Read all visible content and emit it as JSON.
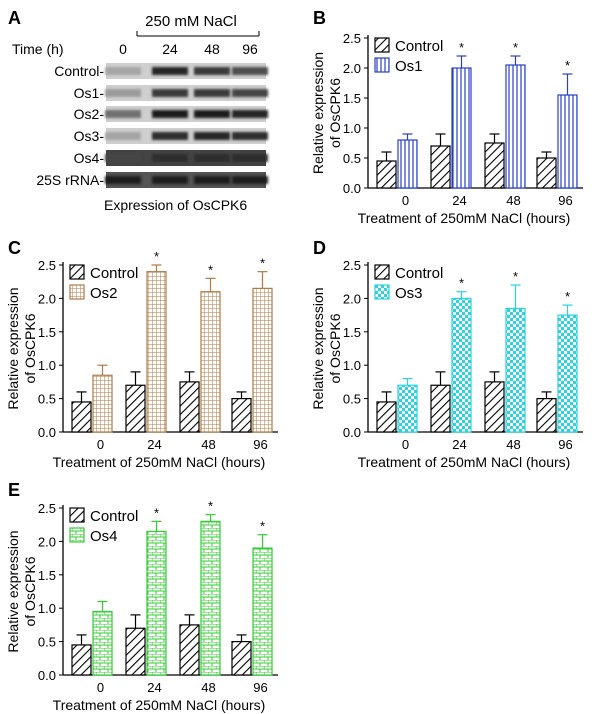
{
  "panel_labels": [
    "A",
    "B",
    "C",
    "D",
    "E"
  ],
  "blot": {
    "treatment": "250 mM NaCl",
    "time_label": "Time (h)",
    "times": [
      "0",
      "24",
      "48",
      "96"
    ],
    "rows": [
      "Control-",
      "Os1-",
      "Os2-",
      "Os3-",
      "Os4-",
      "25S rRNA-"
    ],
    "caption": "Expression of OsCPK6"
  },
  "chart_data": [
    {
      "panel": "B",
      "type": "bar",
      "categories": [
        "0",
        "24",
        "48",
        "96"
      ],
      "series": [
        {
          "name": "Control",
          "values": [
            0.45,
            0.7,
            0.75,
            0.5
          ],
          "errors": [
            0.15,
            0.2,
            0.15,
            0.1
          ]
        },
        {
          "name": "Os1",
          "values": [
            0.8,
            2.0,
            2.05,
            1.55
          ],
          "errors": [
            0.1,
            0.2,
            0.15,
            0.35
          ]
        }
      ],
      "significance": [
        "",
        "*",
        "*",
        "*"
      ],
      "ylabel": "Relative expression of OsCPK6",
      "xlabel": "Treatment of 250mM NaCl (hours)",
      "ylim": [
        0,
        2.5
      ],
      "yticks": [
        "0.0",
        "0.5",
        "1.0",
        "1.5",
        "2.0",
        "2.5"
      ],
      "color": "#2a3fc4",
      "pattern": "vlines",
      "legend": "top-left"
    },
    {
      "panel": "C",
      "type": "bar",
      "categories": [
        "0",
        "24",
        "48",
        "96"
      ],
      "series": [
        {
          "name": "Control",
          "values": [
            0.45,
            0.7,
            0.75,
            0.5
          ],
          "errors": [
            0.15,
            0.2,
            0.15,
            0.1
          ]
        },
        {
          "name": "Os2",
          "values": [
            0.85,
            2.4,
            2.1,
            2.15
          ],
          "errors": [
            0.15,
            0.1,
            0.2,
            0.25
          ]
        }
      ],
      "significance": [
        "",
        "*",
        "*",
        "*"
      ],
      "ylabel": "Relative expression of OsCPK6",
      "xlabel": "Treatment of 250mM NaCl (hours)",
      "ylim": [
        0,
        2.5
      ],
      "yticks": [
        "0.0",
        "0.5",
        "1.0",
        "1.5",
        "2.0",
        "2.5"
      ],
      "color": "#b07a45",
      "pattern": "grid",
      "legend": "top-left"
    },
    {
      "panel": "D",
      "type": "bar",
      "categories": [
        "0",
        "24",
        "48",
        "96"
      ],
      "series": [
        {
          "name": "Control",
          "values": [
            0.45,
            0.7,
            0.75,
            0.5
          ],
          "errors": [
            0.15,
            0.2,
            0.15,
            0.1
          ]
        },
        {
          "name": "Os3",
          "values": [
            0.7,
            2.0,
            1.85,
            1.75
          ],
          "errors": [
            0.1,
            0.1,
            0.35,
            0.15
          ]
        }
      ],
      "significance": [
        "",
        "*",
        "*",
        "*"
      ],
      "ylabel": "Relative expression of OsCPK6",
      "xlabel": "Treatment of 250mM NaCl (hours)",
      "ylim": [
        0,
        2.5
      ],
      "yticks": [
        "0.0",
        "0.5",
        "1.0",
        "1.5",
        "2.0",
        "2.5"
      ],
      "color": "#2ad3e0",
      "pattern": "checker",
      "legend": "top-left"
    },
    {
      "panel": "E",
      "type": "bar",
      "categories": [
        "0",
        "24",
        "48",
        "96"
      ],
      "series": [
        {
          "name": "Control",
          "values": [
            0.45,
            0.7,
            0.75,
            0.5
          ],
          "errors": [
            0.15,
            0.2,
            0.15,
            0.1
          ]
        },
        {
          "name": "Os4",
          "values": [
            0.95,
            2.15,
            2.3,
            1.9
          ],
          "errors": [
            0.15,
            0.15,
            0.1,
            0.2
          ]
        }
      ],
      "significance": [
        "",
        "*",
        "*",
        "*"
      ],
      "ylabel": "Relative expression of OsCPK6",
      "xlabel": "Treatment of 250mM NaCl (hours)",
      "ylim": [
        0,
        2.5
      ],
      "yticks": [
        "0.0",
        "0.5",
        "1.0",
        "1.5",
        "2.0",
        "2.5"
      ],
      "color": "#33cc33",
      "pattern": "brick",
      "legend": "top-left"
    }
  ]
}
